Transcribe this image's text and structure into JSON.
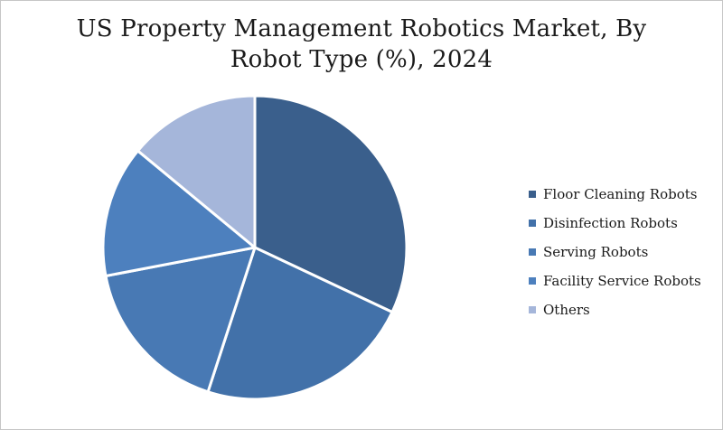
{
  "header": {
    "title_lines": [
      "US Property Management Robotics Market, By",
      "Robot Type (%), 2024"
    ]
  },
  "chart_data": {
    "type": "pie",
    "title": "US Property Management Robotics Market, By Robot Type (%), 2024",
    "categories": [
      "Floor Cleaning Robots",
      "Disinfection Robots",
      "Serving Robots",
      "Facility Service Robots",
      "Others"
    ],
    "values": [
      32,
      23,
      17,
      14,
      14
    ],
    "unit": "%",
    "colors": [
      "#3A5F8C",
      "#4271A9",
      "#4879B4",
      "#4D80BE",
      "#A5B6DA"
    ],
    "start_angle_deg": 0,
    "direction": "clockwise",
    "legend_position": "right",
    "slice_border_color": "#FFFFFF",
    "slice_border_width": 3,
    "background": "#FFFFFF"
  }
}
